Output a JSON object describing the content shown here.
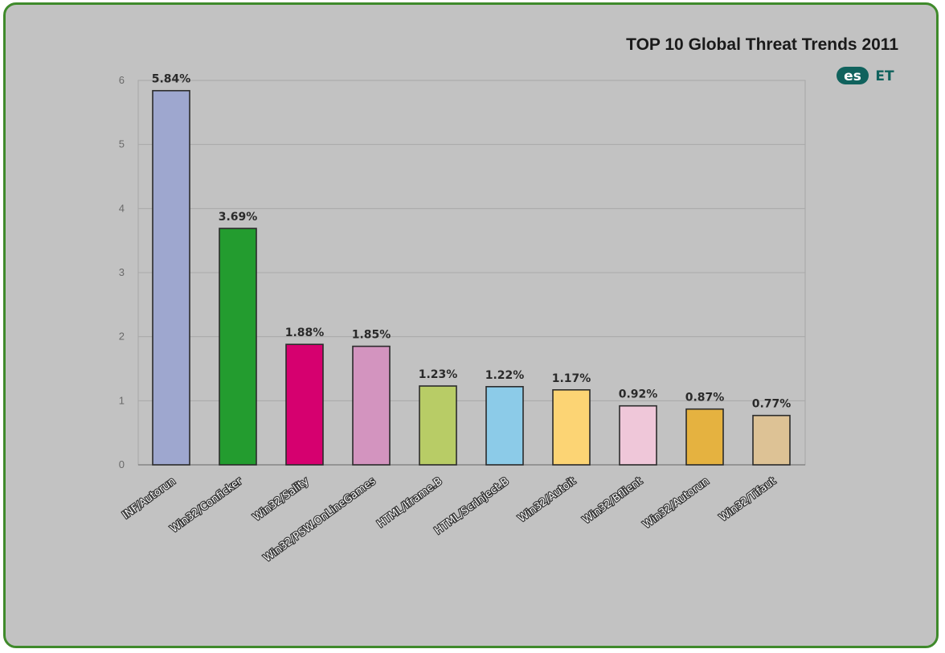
{
  "chart_data": {
    "type": "bar",
    "title": "TOP 10 Global Threat Trends 2011",
    "logo": "ESET",
    "categories": [
      "INF/Autorun",
      "Win32/Conficker",
      "Win32/Sality",
      "Win32/PSW.OnLineGames",
      "HTML/Iframe.B",
      "HTML/ScrInject.B",
      "Win32/Autoit",
      "Win32/Bflient",
      "Win32/Autorun",
      "Win32/Tifaut"
    ],
    "values": [
      5.84,
      3.69,
      1.88,
      1.85,
      1.23,
      1.22,
      1.17,
      0.92,
      0.87,
      0.77
    ],
    "data_labels": [
      "5.84%",
      "3.69%",
      "1.88%",
      "1.85%",
      "1.23%",
      "1.22%",
      "1.17%",
      "0.92%",
      "0.87%",
      "0.77%"
    ],
    "colors": [
      "#9ea7cf",
      "#239c2f",
      "#d6006f",
      "#d394bf",
      "#b8cc66",
      "#8ccbe8",
      "#fcd474",
      "#efc7d9",
      "#e5b240",
      "#ddc295"
    ],
    "ylim": [
      0,
      6
    ],
    "yticks": [
      "0",
      "1",
      "2",
      "3",
      "4",
      "5",
      "6"
    ],
    "grid": true,
    "xlabel": "",
    "ylabel": ""
  }
}
